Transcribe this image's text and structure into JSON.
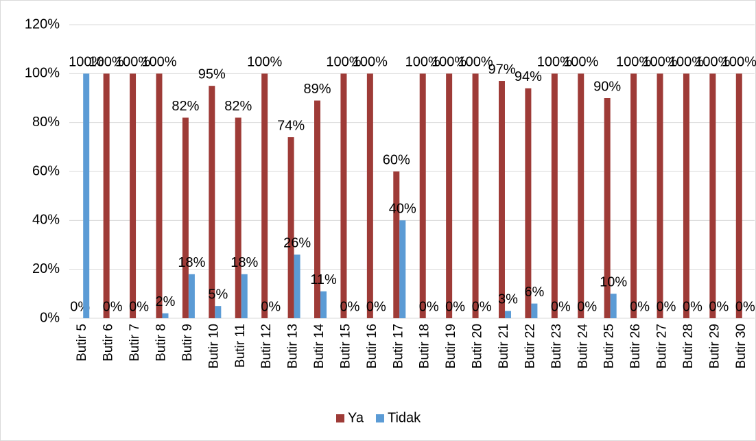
{
  "chart_data": {
    "type": "bar",
    "categories": [
      "Butir 5",
      "Butir 6",
      "Butir 7",
      "Butir 8",
      "Butir 9",
      "Butir 10",
      "Butir 11",
      "Butir 12",
      "Butir 13",
      "Butir 14",
      "Butir 15",
      "Butir 16",
      "Butir 17",
      "Butir 18",
      "Butir 19",
      "Butir 20",
      "Butir 21",
      "Butir 22",
      "Butir 23",
      "Butir 24",
      "Butir 25",
      "Butir 26",
      "Butir 27",
      "Butir 28",
      "Butir 29",
      "Butir 30"
    ],
    "series": [
      {
        "name": "Ya",
        "color": "#9e3b37",
        "values": [
          0,
          100,
          100,
          100,
          82,
          95,
          82,
          100,
          74,
          89,
          100,
          100,
          60,
          100,
          100,
          100,
          97,
          94,
          100,
          100,
          90,
          100,
          100,
          100,
          100,
          100
        ],
        "value_labels": [
          "0%",
          "100%",
          "100%",
          "100%",
          "82%",
          "95%",
          "82%",
          "100%",
          "74%",
          "89%",
          "100%",
          "100%",
          "60%",
          "100%",
          "100%",
          "100%",
          "97%",
          "94%",
          "100%",
          "100%",
          "90%",
          "100%",
          "100%",
          "100%",
          "100%",
          "100%"
        ]
      },
      {
        "name": "Tidak",
        "color": "#5b9bd5",
        "values": [
          100,
          0,
          0,
          2,
          18,
          5,
          18,
          0,
          26,
          11,
          0,
          0,
          40,
          0,
          0,
          0,
          3,
          6,
          0,
          0,
          10,
          0,
          0,
          0,
          0,
          0
        ],
        "value_labels": [
          "100%",
          "0%",
          "0%",
          "2%",
          "18%",
          "5%",
          "18%",
          "0%",
          "26%",
          "11%",
          "0%",
          "0%",
          "40%",
          "0%",
          "0%",
          "0%",
          "3%",
          "6%",
          "0%",
          "0%",
          "10%",
          "0%",
          "0%",
          "0%",
          "0%",
          "0%"
        ]
      }
    ],
    "ylim": [
      0,
      120
    ],
    "yticks": [
      {
        "value": 0,
        "label": "0%"
      },
      {
        "value": 20,
        "label": "20%"
      },
      {
        "value": 40,
        "label": "40%"
      },
      {
        "value": 60,
        "label": "60%"
      },
      {
        "value": 80,
        "label": "80%"
      },
      {
        "value": 100,
        "label": "100%"
      },
      {
        "value": 120,
        "label": "120%"
      }
    ],
    "grid": true,
    "legend": "bottom"
  }
}
